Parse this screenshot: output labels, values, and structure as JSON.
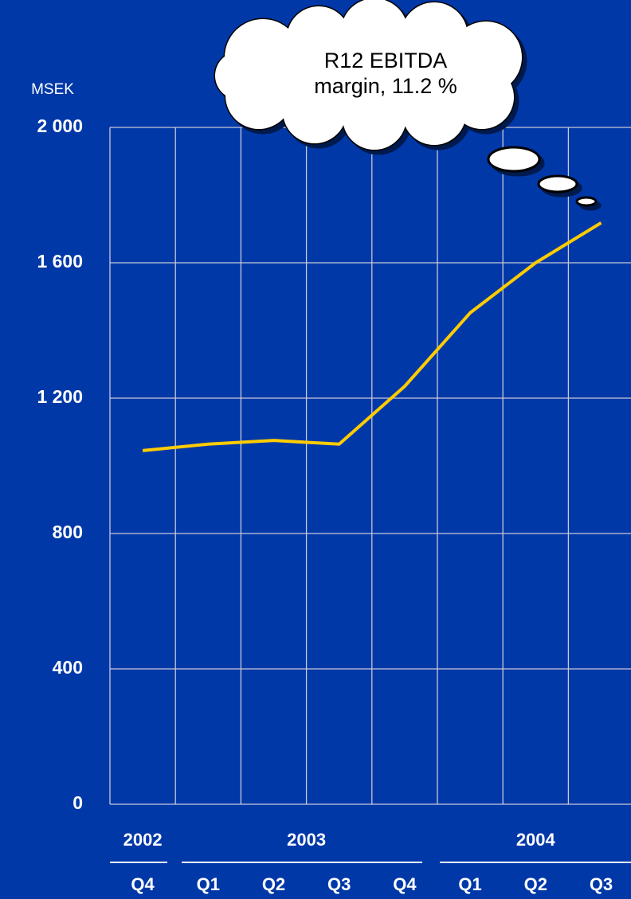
{
  "chart_data": {
    "type": "line",
    "y_label": "MSEK",
    "annotation": [
      "R12 EBITDA",
      "margin, 11.2 %"
    ],
    "categories": [
      "Q4",
      "Q1",
      "Q2",
      "Q3",
      "Q4",
      "Q1",
      "Q2",
      "Q3"
    ],
    "x_groups": [
      "2002",
      "2003",
      "2004"
    ],
    "series": [
      {
        "color": "#ffcc00",
        "values": [
          1045,
          1064,
          1075,
          1064,
          1235,
          1452,
          1600,
          1718
        ]
      }
    ],
    "ylim": [
      0,
      2000
    ],
    "yticks": [
      0,
      400,
      800,
      {
        "value": 1200,
        "label": "1 200"
      },
      {
        "value": 1600,
        "label": "1 600"
      },
      {
        "value": 2000,
        "label": "2 000"
      }
    ],
    "grid": true
  }
}
